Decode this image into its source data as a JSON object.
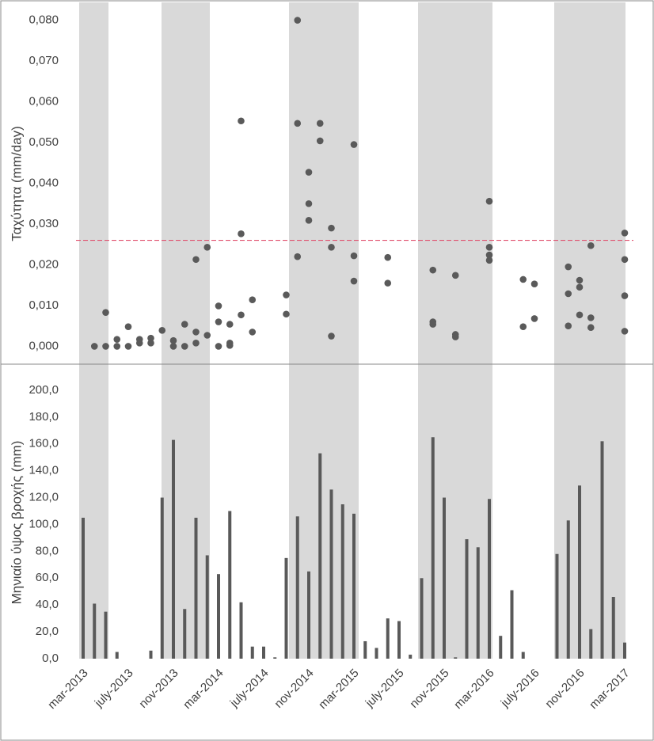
{
  "chart_data": [
    {
      "type": "scatter",
      "ylabel": "Ταχύτητα (mm/day)",
      "color": "#5a5a5a",
      "ylim": [
        -0.004,
        0.084
      ],
      "yticks": [
        {
          "value": 0,
          "label": "0,000"
        },
        {
          "value": 0.01,
          "label": "0,010"
        },
        {
          "value": 0.02,
          "label": "0,020"
        },
        {
          "value": 0.03,
          "label": "0,030"
        },
        {
          "value": 0.04,
          "label": "0,040"
        },
        {
          "value": 0.05,
          "label": "0,050"
        },
        {
          "value": 0.06,
          "label": "0,060"
        },
        {
          "value": 0.07,
          "label": "0,070"
        },
        {
          "value": 0.08,
          "label": "0,080"
        }
      ],
      "reference_line": 0.026,
      "reference_color": "#e0506e",
      "x": [
        1,
        2,
        2,
        3,
        3,
        4,
        4,
        5,
        5,
        6,
        6,
        7,
        8,
        8,
        9,
        9,
        10,
        10,
        10,
        11,
        11,
        12,
        12,
        12,
        13,
        13,
        13,
        14,
        14,
        14,
        15,
        15,
        18,
        18,
        19,
        19,
        19,
        20,
        20,
        20,
        21,
        21,
        22,
        22,
        22,
        24,
        24,
        24,
        27,
        27,
        31,
        31,
        31,
        33,
        33,
        33,
        36,
        36,
        36,
        36,
        39,
        39,
        40,
        40,
        43,
        43,
        43,
        44,
        44,
        44,
        45,
        45,
        45,
        48,
        48,
        48,
        48
      ],
      "values": [
        0,
        0,
        0.0083,
        0.0017,
        0,
        0.0048,
        0,
        0.0017,
        0.0008,
        0.002,
        0.0008,
        0.0039,
        0.0014,
        0,
        0.0054,
        0,
        0.0213,
        0.0035,
        0.0008,
        0.0243,
        0.0027,
        0.0099,
        0.006,
        0,
        0.0054,
        0.0008,
        0.0002,
        0.0553,
        0.0276,
        0.0077,
        0.0114,
        0.0035,
        0.0126,
        0.0079,
        0.08,
        0.0547,
        0.022,
        0.0427,
        0.035,
        0.0309,
        0.0547,
        0.0504,
        0.029,
        0.0243,
        0.0025,
        0.0495,
        0.0222,
        0.016,
        0.0218,
        0.0155,
        0.0187,
        0.006,
        0.0054,
        0.0174,
        0.0029,
        0.0023,
        0.0356,
        0.0243,
        0.0224,
        0.0211,
        0.0164,
        0.0048,
        0.0153,
        0.0068,
        0.0195,
        0.0129,
        0.005,
        0.0162,
        0.0145,
        0.0077,
        0.0247,
        0.007,
        0.0046,
        0.0278,
        0.0213,
        0.0124,
        0.0037
      ]
    },
    {
      "type": "bar",
      "ylabel": "Μηνιαίο ύψος βροχής (mm)",
      "color": "#595959",
      "ylim": [
        0,
        220
      ],
      "yticks": [
        {
          "value": 0,
          "label": "0,0"
        },
        {
          "value": 20,
          "label": "20,0"
        },
        {
          "value": 40,
          "label": "40,0"
        },
        {
          "value": 60,
          "label": "60,0"
        },
        {
          "value": 80,
          "label": "80,0"
        },
        {
          "value": 100,
          "label": "100,0"
        },
        {
          "value": 120,
          "label": "120,0"
        },
        {
          "value": 140,
          "label": "140,0"
        },
        {
          "value": 160,
          "label": "160,0"
        },
        {
          "value": 180,
          "label": "180,0"
        },
        {
          "value": 200,
          "label": "200,0"
        }
      ],
      "categories": [
        "mar-2013",
        null,
        null,
        null,
        "july-2013",
        null,
        null,
        null,
        "nov-2013",
        null,
        null,
        null,
        "mar-2014",
        null,
        null,
        null,
        "july-2014",
        null,
        null,
        null,
        "nov-2014",
        null,
        null,
        null,
        "mar-2015",
        null,
        null,
        null,
        "july-2015",
        null,
        null,
        null,
        "nov-2015",
        null,
        null,
        null,
        "mar-2016",
        null,
        null,
        null,
        "july-2016",
        null,
        null,
        null,
        "nov-2016",
        null,
        null,
        null,
        "mar-2017"
      ],
      "values": [
        105,
        41,
        35,
        5,
        0,
        0,
        6,
        120,
        163,
        37,
        105,
        77,
        63,
        110,
        42,
        9,
        9,
        1,
        75,
        106,
        65,
        153,
        126,
        115,
        108,
        13,
        8,
        30,
        28,
        3,
        60,
        165,
        120,
        1,
        89,
        83,
        119,
        17,
        51,
        5,
        0,
        0,
        78,
        103,
        129,
        22,
        162,
        46,
        12
      ]
    }
  ]
}
